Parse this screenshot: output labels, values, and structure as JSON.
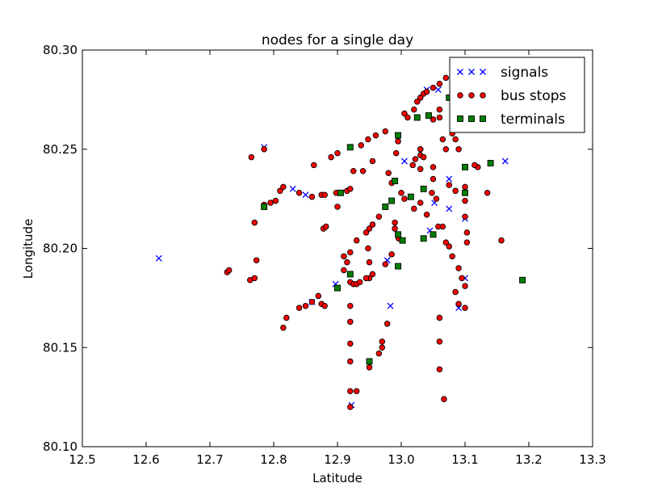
{
  "chart_data": {
    "type": "scatter",
    "title": "nodes for a single day",
    "xlabel": "Latitude",
    "ylabel": "Longitude",
    "xlim": [
      12.5,
      13.3
    ],
    "ylim": [
      80.1,
      80.3
    ],
    "x_ticks": [
      "12.5",
      "12.6",
      "12.7",
      "12.8",
      "12.9",
      "13.0",
      "13.1",
      "13.2",
      "13.3"
    ],
    "y_ticks": [
      "80.10",
      "80.15",
      "80.20",
      "80.25",
      "80.30"
    ],
    "grid": false,
    "legend_position": "top-right",
    "series": [
      {
        "name": "signals",
        "marker": "x",
        "color": "#0000ff",
        "points": [
          [
            12.62,
            80.195
          ],
          [
            12.785,
            80.251
          ],
          [
            12.83,
            80.23
          ],
          [
            12.85,
            80.227
          ],
          [
            12.86,
            80.173
          ],
          [
            12.897,
            80.182
          ],
          [
            12.922,
            80.121
          ],
          [
            12.978,
            80.194
          ],
          [
            12.983,
            80.171
          ],
          [
            13.005,
            80.244
          ],
          [
            13.045,
            80.209
          ],
          [
            13.052,
            80.223
          ],
          [
            13.058,
            80.28
          ],
          [
            13.075,
            80.235
          ],
          [
            13.075,
            80.22
          ],
          [
            13.09,
            80.17
          ],
          [
            13.1,
            80.215
          ],
          [
            13.1,
            80.185
          ],
          [
            13.163,
            80.244
          ],
          [
            13.04,
            80.28
          ]
        ]
      },
      {
        "name": "bus stops",
        "marker": "o",
        "color": "#ff0000",
        "points": [
          [
            12.765,
            80.246
          ],
          [
            12.785,
            80.25
          ],
          [
            12.77,
            80.213
          ],
          [
            12.773,
            80.194
          ],
          [
            12.727,
            80.188
          ],
          [
            12.73,
            80.189
          ],
          [
            12.763,
            80.184
          ],
          [
            12.77,
            80.185
          ],
          [
            12.785,
            80.222
          ],
          [
            12.795,
            80.223
          ],
          [
            12.803,
            80.224
          ],
          [
            12.81,
            80.229
          ],
          [
            12.815,
            80.231
          ],
          [
            12.84,
            80.228
          ],
          [
            12.86,
            80.226
          ],
          [
            12.875,
            80.227
          ],
          [
            12.88,
            80.227
          ],
          [
            12.878,
            80.21
          ],
          [
            12.882,
            80.211
          ],
          [
            12.863,
            80.242
          ],
          [
            12.89,
            80.246
          ],
          [
            12.9,
            80.248
          ],
          [
            12.9,
            80.221
          ],
          [
            12.898,
            80.228
          ],
          [
            12.915,
            80.229
          ],
          [
            12.92,
            80.23
          ],
          [
            12.925,
            80.239
          ],
          [
            12.94,
            80.239
          ],
          [
            12.937,
            80.252
          ],
          [
            12.948,
            80.255
          ],
          [
            12.96,
            80.257
          ],
          [
            12.975,
            80.259
          ],
          [
            12.955,
            80.244
          ],
          [
            12.98,
            80.238
          ],
          [
            12.985,
            80.233
          ],
          [
            12.91,
            80.196
          ],
          [
            12.91,
            80.189
          ],
          [
            12.915,
            80.193
          ],
          [
            12.92,
            80.198
          ],
          [
            12.93,
            80.204
          ],
          [
            12.945,
            80.208
          ],
          [
            12.95,
            80.21
          ],
          [
            12.955,
            80.212
          ],
          [
            12.965,
            80.216
          ],
          [
            12.948,
            80.2
          ],
          [
            12.95,
            80.193
          ],
          [
            12.95,
            80.185
          ],
          [
            12.955,
            80.187
          ],
          [
            12.975,
            80.192
          ],
          [
            12.985,
            80.197
          ],
          [
            12.99,
            80.213
          ],
          [
            12.99,
            80.21
          ],
          [
            12.996,
            80.205
          ],
          [
            13.0,
            80.228
          ],
          [
            13.005,
            80.225
          ],
          [
            13.018,
            80.242
          ],
          [
            13.022,
            80.245
          ],
          [
            13.02,
            80.22
          ],
          [
            13.03,
            80.223
          ],
          [
            13.03,
            80.24
          ],
          [
            13.03,
            80.25
          ],
          [
            13.04,
            80.217
          ],
          [
            13.048,
            80.228
          ],
          [
            13.05,
            80.241
          ],
          [
            13.05,
            80.235
          ],
          [
            13.055,
            80.225
          ],
          [
            13.058,
            80.211
          ],
          [
            13.065,
            80.211
          ],
          [
            13.07,
            80.203
          ],
          [
            13.075,
            80.201
          ],
          [
            13.08,
            80.196
          ],
          [
            13.09,
            80.19
          ],
          [
            13.095,
            80.185
          ],
          [
            13.1,
            80.181
          ],
          [
            13.085,
            80.178
          ],
          [
            13.09,
            80.172
          ],
          [
            13.1,
            80.17
          ],
          [
            13.075,
            80.232
          ],
          [
            13.085,
            80.229
          ],
          [
            13.1,
            80.231
          ],
          [
            13.1,
            80.224
          ],
          [
            13.1,
            80.216
          ],
          [
            13.103,
            80.208
          ],
          [
            13.103,
            80.203
          ],
          [
            13.12,
            80.241
          ],
          [
            13.115,
            80.242
          ],
          [
            13.135,
            80.228
          ],
          [
            13.157,
            80.204
          ],
          [
            13.09,
            80.25
          ],
          [
            13.085,
            80.255
          ],
          [
            13.08,
            80.258
          ],
          [
            13.07,
            80.25
          ],
          [
            13.065,
            80.255
          ],
          [
            13.06,
            80.266
          ],
          [
            13.06,
            80.27
          ],
          [
            13.05,
            80.265
          ],
          [
            13.05,
            80.281
          ],
          [
            13.06,
            80.283
          ],
          [
            13.07,
            80.286
          ],
          [
            13.08,
            80.288
          ],
          [
            13.09,
            80.287
          ],
          [
            13.11,
            80.278
          ],
          [
            13.13,
            80.285
          ],
          [
            13.035,
            80.278
          ],
          [
            13.04,
            80.279
          ],
          [
            13.03,
            80.276
          ],
          [
            13.025,
            80.274
          ],
          [
            13.02,
            80.27
          ],
          [
            13.005,
            80.268
          ],
          [
            13.01,
            80.266
          ],
          [
            13.03,
            80.25
          ],
          [
            13.03,
            80.247
          ],
          [
            13.035,
            80.246
          ],
          [
            12.995,
            80.254
          ],
          [
            12.992,
            80.248
          ],
          [
            12.815,
            80.16
          ],
          [
            12.82,
            80.165
          ],
          [
            12.84,
            80.17
          ],
          [
            12.85,
            80.171
          ],
          [
            12.86,
            80.173
          ],
          [
            12.87,
            80.176
          ],
          [
            12.875,
            80.172
          ],
          [
            12.88,
            80.171
          ],
          [
            12.9,
            80.18
          ],
          [
            12.92,
            80.183
          ],
          [
            12.925,
            80.182
          ],
          [
            12.93,
            80.182
          ],
          [
            12.935,
            80.183
          ],
          [
            12.945,
            80.185
          ],
          [
            12.92,
            80.171
          ],
          [
            12.92,
            80.163
          ],
          [
            12.92,
            80.152
          ],
          [
            12.92,
            80.143
          ],
          [
            12.92,
            80.128
          ],
          [
            12.93,
            80.128
          ],
          [
            12.92,
            80.12
          ],
          [
            12.97,
            80.153
          ],
          [
            12.97,
            80.15
          ],
          [
            12.965,
            80.147
          ],
          [
            12.978,
            80.162
          ],
          [
            12.95,
            80.14
          ],
          [
            13.06,
            80.165
          ],
          [
            13.06,
            80.153
          ],
          [
            13.06,
            80.139
          ],
          [
            13.067,
            80.124
          ]
        ]
      },
      {
        "name": "terminals",
        "marker": "s",
        "color": "#008000",
        "points": [
          [
            12.785,
            80.221
          ],
          [
            12.905,
            80.228
          ],
          [
            12.92,
            80.251
          ],
          [
            12.9,
            80.18
          ],
          [
            12.92,
            80.187
          ],
          [
            12.95,
            80.143
          ],
          [
            12.975,
            80.221
          ],
          [
            12.985,
            80.224
          ],
          [
            12.99,
            80.234
          ],
          [
            12.995,
            80.257
          ],
          [
            12.995,
            80.207
          ],
          [
            13.002,
            80.204
          ],
          [
            12.995,
            80.191
          ],
          [
            13.015,
            80.226
          ],
          [
            13.025,
            80.266
          ],
          [
            13.035,
            80.23
          ],
          [
            13.043,
            80.267
          ],
          [
            13.035,
            80.205
          ],
          [
            13.05,
            80.207
          ],
          [
            13.075,
            80.276
          ],
          [
            13.1,
            80.241
          ],
          [
            13.1,
            80.228
          ],
          [
            13.14,
            80.243
          ],
          [
            13.19,
            80.184
          ]
        ]
      }
    ]
  }
}
